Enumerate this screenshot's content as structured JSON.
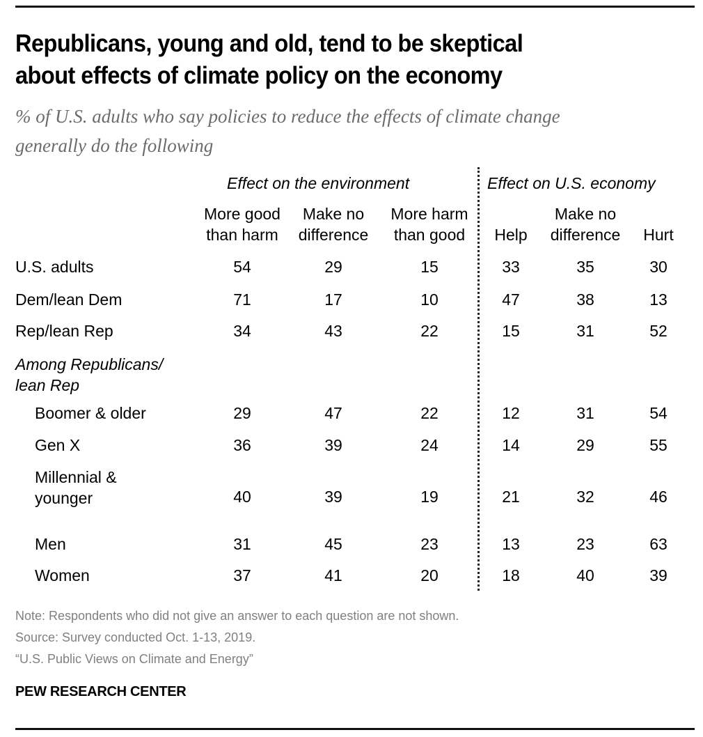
{
  "header": {
    "title_line1": "Republicans, young and old, tend to be skeptical",
    "title_line2": "about effects of climate policy on the economy",
    "subtitle_line1": "% of U.S. adults who say policies to reduce the effects of climate change",
    "subtitle_line2": "generally do the following"
  },
  "chart_data": {
    "type": "table",
    "title": "Republicans, young and old, tend to be skeptical about effects of climate policy on the economy",
    "subtitle": "% of U.S. adults who say policies to reduce the effects of climate change generally do the following",
    "groups": [
      {
        "name": "Effect on the environment",
        "columns": [
          {
            "line1": "More good",
            "line2": "than harm"
          },
          {
            "line1": "Make no",
            "line2": "difference"
          },
          {
            "line1": "More harm",
            "line2": "than good"
          }
        ]
      },
      {
        "name": "Effect on U.S. economy",
        "columns": [
          {
            "line1": "",
            "line2": "Help"
          },
          {
            "line1": "Make no",
            "line2": "difference"
          },
          {
            "line1": "",
            "line2": "Hurt"
          }
        ]
      }
    ],
    "rows": [
      {
        "label": "U.S. adults",
        "values": [
          "54",
          "29",
          "15",
          "33",
          "35",
          "30"
        ]
      },
      {
        "label": "Dem/lean Dem",
        "values": [
          "71",
          "17",
          "10",
          "47",
          "38",
          "13"
        ]
      },
      {
        "label": "Rep/lean Rep",
        "values": [
          "34",
          "43",
          "22",
          "15",
          "31",
          "52"
        ]
      },
      {
        "label": "Among Republicans/",
        "label2": "lean Rep",
        "values": []
      },
      {
        "label": "Boomer & older",
        "values": [
          "29",
          "47",
          "22",
          "12",
          "31",
          "54"
        ]
      },
      {
        "label": "Gen X",
        "values": [
          "36",
          "39",
          "24",
          "14",
          "29",
          "55"
        ]
      },
      {
        "label": "Millennial &",
        "label2": "younger",
        "values": [
          "40",
          "39",
          "19",
          "21",
          "32",
          "46"
        ]
      },
      {
        "label": "Men",
        "values": [
          "31",
          "45",
          "23",
          "13",
          "23",
          "63"
        ]
      },
      {
        "label": "Women",
        "values": [
          "37",
          "41",
          "20",
          "18",
          "40",
          "39"
        ]
      }
    ]
  },
  "footer": {
    "note": "Note: Respondents who did not give an answer to each question are not shown.",
    "source": "Source: Survey conducted Oct. 1-13, 2019.",
    "report": "“U.S. Public Views on Climate and Energy”",
    "brand": "PEW RESEARCH CENTER"
  }
}
